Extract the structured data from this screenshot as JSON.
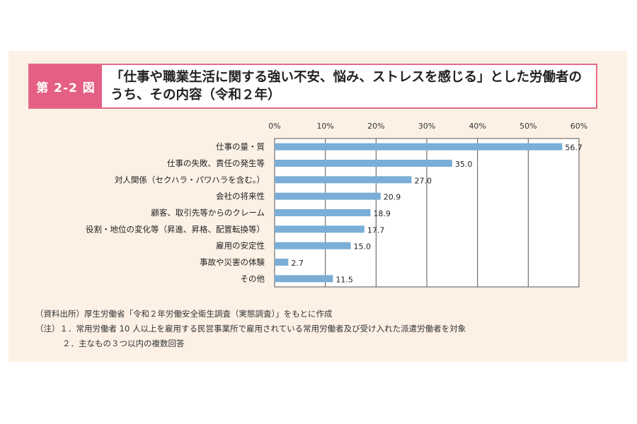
{
  "header": {
    "figure_label": "第 2-2 図",
    "title": "「仕事や職業生活に関する強い不安、悩み、ストレスを感じる」とした労働者のうち、その内容（令和２年）"
  },
  "chart_data": {
    "type": "bar",
    "orientation": "horizontal",
    "categories": [
      "仕事の量・質",
      "仕事の失敗、責任の発生等",
      "対人関係（セクハラ・パワハラを含む。）",
      "会社の将来性",
      "顧客、取引先等からのクレーム",
      "役割・地位の変化等（昇進、昇格、配置転換等）",
      "雇用の安定性",
      "事故や災害の体験",
      "その他"
    ],
    "values": [
      56.7,
      35.0,
      27.0,
      20.9,
      18.9,
      17.7,
      15.0,
      2.7,
      11.5
    ],
    "value_labels": [
      "56.7",
      "35.0",
      "27.0",
      "20.9",
      "18.9",
      "17.7",
      "15.0",
      "2.7",
      "11.5"
    ],
    "xlim": [
      0,
      60
    ],
    "x_ticks": [
      0,
      10,
      20,
      30,
      40,
      50,
      60
    ],
    "x_tick_labels": [
      "0%",
      "10%",
      "20%",
      "30%",
      "40%",
      "50%",
      "60%"
    ],
    "axis_position": "top",
    "grid": true,
    "bar_color": "#7aaed6"
  },
  "notes": [
    "（資料出所）厚生労働省「令和２年労働安全衛生調査（実態調査）」をもとに作成",
    "（注）１．常用労働者 10 人以上を雇用する民営事業所で雇用されている常用労働者及び受け入れた派遣労働者を対象",
    "２．主なもの３つ以内の複数回答"
  ]
}
